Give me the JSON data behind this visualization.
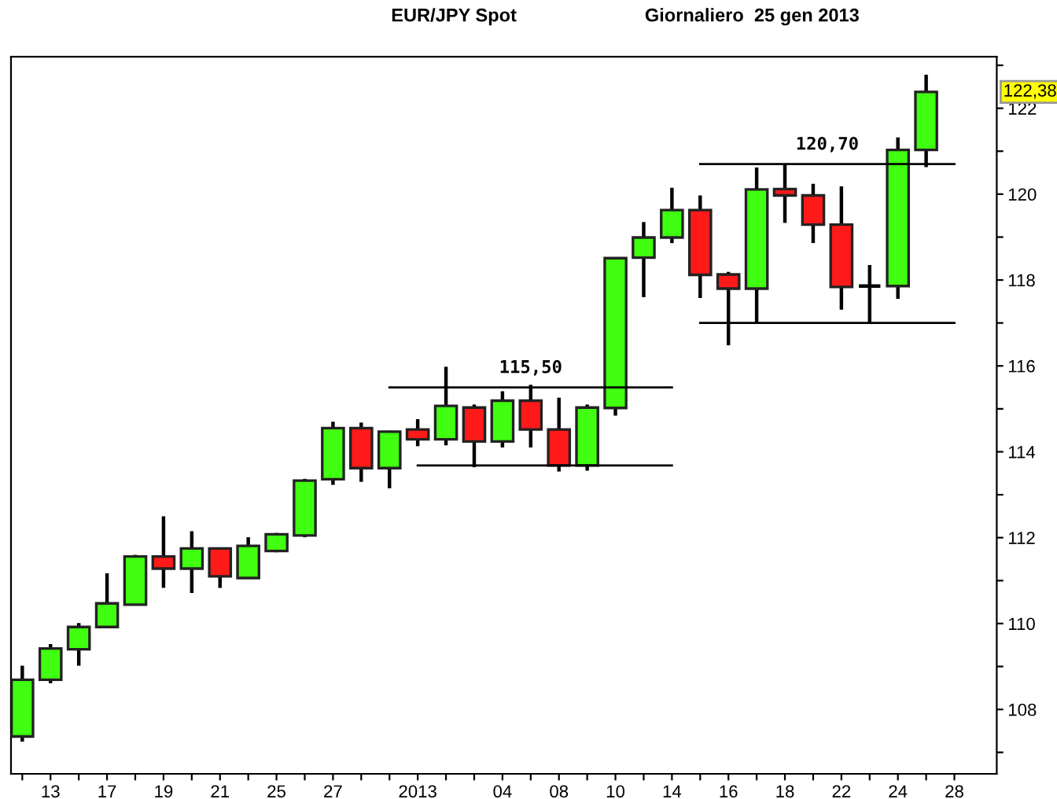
{
  "chart_data": {
    "type": "candlestick",
    "title": "EUR/JPY Spot",
    "subtitle": "Giornaliero  25 gen 2013",
    "categories": [
      null,
      "13",
      null,
      "17",
      null,
      "19",
      null,
      "21",
      null,
      "25",
      null,
      "27",
      null,
      null,
      "2013",
      null,
      null,
      "04",
      null,
      "08",
      null,
      "10",
      null,
      "14",
      null,
      "16",
      null,
      "18",
      null,
      "22",
      null,
      "24",
      null,
      "28"
    ],
    "ohlc": [
      [
        107.37,
        109.02,
        107.25,
        108.69
      ],
      [
        108.69,
        109.52,
        108.61,
        109.42
      ],
      [
        109.4,
        110.01,
        109.02,
        109.92
      ],
      [
        109.92,
        111.17,
        109.92,
        110.47
      ],
      [
        110.44,
        111.6,
        110.44,
        111.56
      ],
      [
        111.56,
        112.5,
        110.83,
        111.28
      ],
      [
        111.28,
        112.15,
        110.71,
        111.75
      ],
      [
        111.75,
        111.77,
        110.83,
        111.1
      ],
      [
        111.06,
        112.01,
        111.06,
        111.81
      ],
      [
        111.69,
        112.11,
        111.66,
        112.08
      ],
      [
        112.05,
        113.37,
        112.01,
        113.33
      ],
      [
        113.36,
        114.7,
        113.23,
        114.55
      ],
      [
        114.55,
        114.68,
        113.3,
        113.62
      ],
      [
        113.62,
        114.49,
        113.15,
        114.47
      ],
      [
        114.52,
        114.76,
        114.13,
        114.29
      ],
      [
        114.29,
        115.98,
        114.15,
        115.07
      ],
      [
        115.03,
        115.1,
        113.64,
        114.24
      ],
      [
        114.24,
        115.41,
        114.1,
        115.19
      ],
      [
        115.19,
        115.56,
        114.1,
        114.52
      ],
      [
        114.52,
        115.26,
        113.54,
        113.68
      ],
      [
        113.68,
        115.1,
        113.56,
        115.03
      ],
      [
        115.02,
        118.51,
        114.84,
        118.51
      ],
      [
        118.52,
        119.35,
        117.6,
        118.99
      ],
      [
        118.99,
        120.15,
        118.86,
        119.63
      ],
      [
        119.63,
        119.97,
        117.58,
        118.12
      ],
      [
        118.13,
        118.19,
        116.48,
        117.8
      ],
      [
        117.8,
        120.62,
        117.01,
        120.11
      ],
      [
        120.12,
        120.7,
        119.33,
        119.97
      ],
      [
        119.97,
        120.24,
        118.86,
        119.29
      ],
      [
        119.29,
        120.18,
        117.31,
        117.84
      ],
      [
        117.86,
        118.35,
        117.0,
        117.86
      ],
      [
        117.86,
        121.32,
        117.56,
        121.03
      ],
      [
        121.03,
        122.78,
        120.63,
        122.38
      ],
      null
    ],
    "colors": [
      "#40ff10",
      "#40ff10",
      "#40ff10",
      "#40ff10",
      "#40ff10",
      "#ff1a1a",
      "#40ff10",
      "#ff1a1a",
      "#40ff10",
      "#40ff10",
      "#40ff10",
      "#40ff10",
      "#ff1a1a",
      "#40ff10",
      "#ff1a1a",
      "#40ff10",
      "#ff1a1a",
      "#40ff10",
      "#ff1a1a",
      "#ff1a1a",
      "#40ff10",
      "#40ff10",
      "#40ff10",
      "#40ff10",
      "#ff1a1a",
      "#ff1a1a",
      "#40ff10",
      "#ff1a1a",
      "#ff1a1a",
      "#ff1a1a",
      "#000000",
      "#40ff10",
      "#40ff10",
      null
    ],
    "series": [
      {
        "type": "line",
        "name": "115,50",
        "color": "#000000",
        "values": [
          null,
          null,
          null,
          null,
          null,
          null,
          null,
          null,
          null,
          null,
          null,
          null,
          null,
          115.5,
          115.5,
          115.5,
          115.5,
          115.5,
          115.5,
          115.5,
          115.5,
          115.5,
          115.5,
          115.5,
          null,
          null,
          null,
          null,
          null,
          null,
          null,
          null,
          null,
          null
        ]
      },
      {
        "type": "line",
        "color": "#000000",
        "values": [
          null,
          null,
          null,
          null,
          null,
          null,
          null,
          null,
          null,
          null,
          null,
          null,
          null,
          null,
          113.68,
          113.68,
          113.68,
          113.68,
          113.68,
          113.68,
          113.68,
          113.68,
          113.68,
          113.68,
          null,
          null,
          null,
          null,
          null,
          null,
          null,
          null,
          null,
          null
        ]
      },
      {
        "type": "line",
        "name": "120,70",
        "color": "#000000",
        "values": [
          null,
          null,
          null,
          null,
          null,
          null,
          null,
          null,
          null,
          null,
          null,
          null,
          null,
          null,
          null,
          null,
          null,
          null,
          null,
          null,
          null,
          null,
          null,
          null,
          120.7,
          120.7,
          120.7,
          120.7,
          120.7,
          120.7,
          120.7,
          120.7,
          120.7,
          120.7
        ]
      },
      {
        "type": "line",
        "color": "#000000",
        "values": [
          null,
          null,
          null,
          null,
          null,
          null,
          null,
          null,
          null,
          null,
          null,
          null,
          null,
          null,
          null,
          null,
          null,
          null,
          null,
          null,
          null,
          null,
          null,
          null,
          117.0,
          117.0,
          117.0,
          117.0,
          117.0,
          117.0,
          117.0,
          117.0,
          117.0,
          117.0
        ]
      }
    ],
    "annotations": [
      {
        "text": "122,38",
        "y": 122.38
      }
    ],
    "ylim": [
      106.5,
      123.2
    ],
    "yticks": [
      {
        "value": 107,
        "label": null
      },
      108,
      {
        "value": 109,
        "label": null
      },
      110,
      {
        "value": 111,
        "label": null
      },
      112,
      {
        "value": 113,
        "label": null
      },
      114,
      {
        "value": 115,
        "label": null
      },
      116,
      {
        "value": 117,
        "label": null
      },
      118,
      {
        "value": 119,
        "label": null
      },
      120,
      {
        "value": 121,
        "label": null
      },
      122,
      {
        "value": 123,
        "label": null
      }
    ]
  }
}
